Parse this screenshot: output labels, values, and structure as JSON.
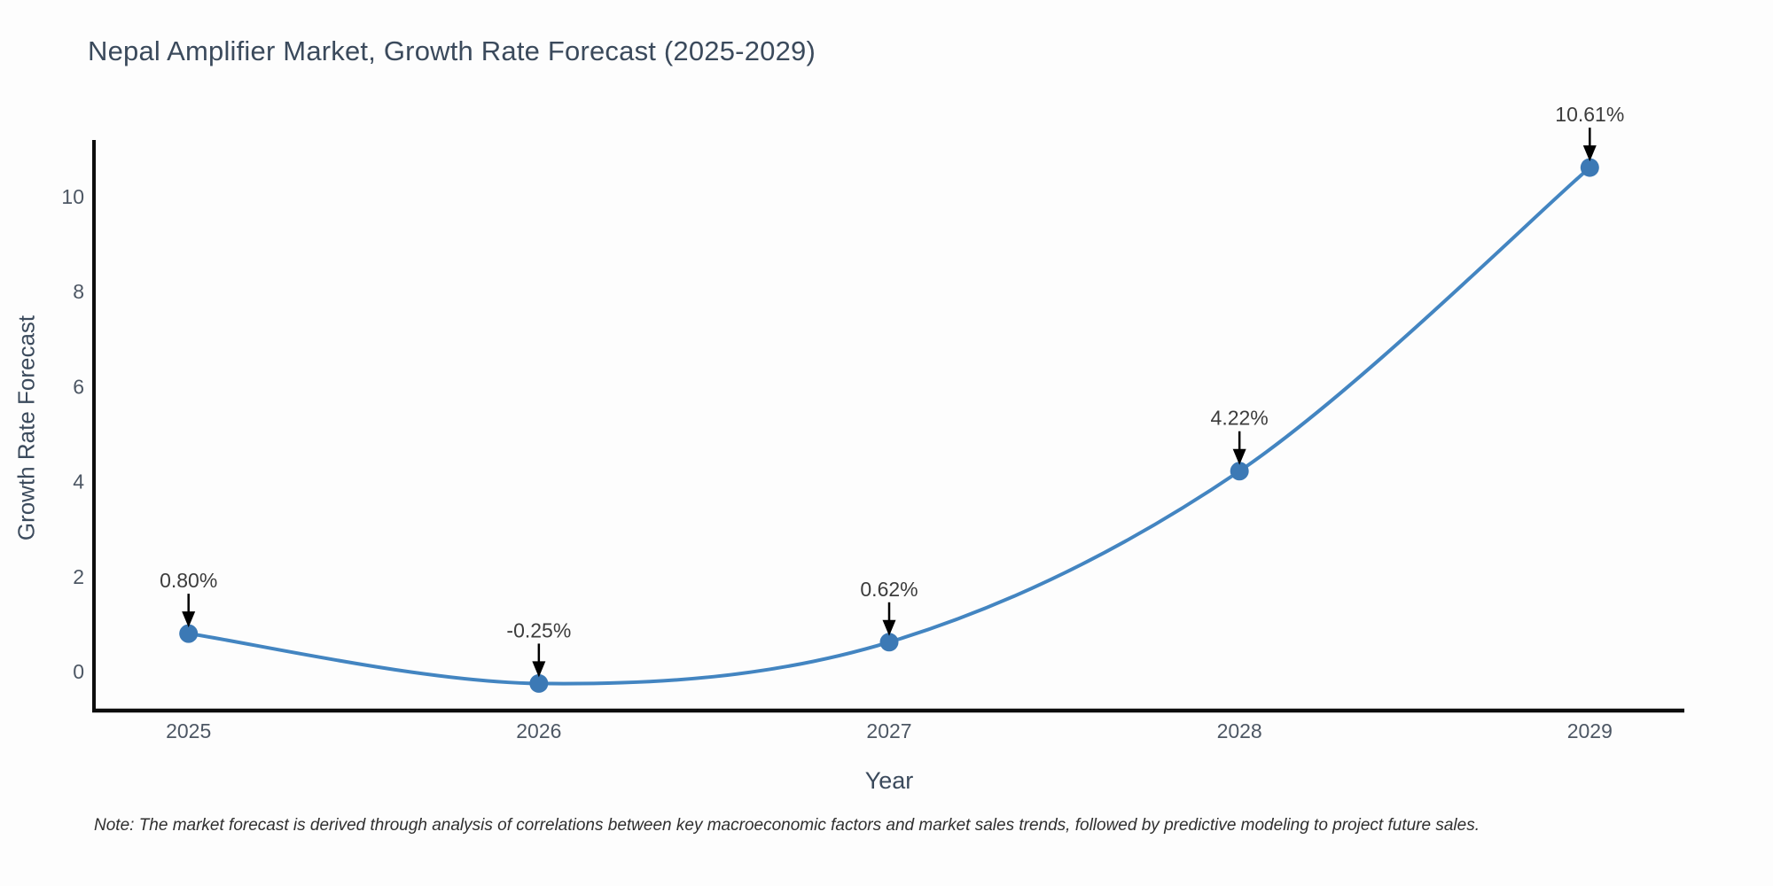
{
  "figure": {
    "title": "Nepal Amplifier Market, Growth Rate Forecast (2025-2029)",
    "note": "Note: The market forecast is derived through analysis of correlations between key macroeconomic factors and market sales trends, followed by predictive modeling to project future sales."
  },
  "chart_data": {
    "type": "line",
    "title": "Nepal Amplifier Market, Growth Rate Forecast (2025-2029)",
    "xlabel": "Year",
    "ylabel": "Growth Rate Forecast",
    "x": [
      2025,
      2026,
      2027,
      2028,
      2029
    ],
    "categories": [
      "2025",
      "2026",
      "2027",
      "2028",
      "2029"
    ],
    "values": [
      0.8,
      -0.25,
      0.62,
      4.22,
      10.61
    ],
    "point_labels": [
      "0.80%",
      "-0.25%",
      "0.62%",
      "4.22%",
      "10.61%"
    ],
    "yticks": [
      0,
      2,
      4,
      6,
      8,
      10
    ],
    "ytick_labels": [
      "0",
      "2",
      "4",
      "6",
      "8",
      "10"
    ],
    "xlim": [
      2024.73,
      2029.27
    ],
    "ylim": [
      -0.82,
      11.19
    ],
    "grid": false,
    "legend_position": "none",
    "line_color": "#4385c1",
    "marker_color": "#3c79b5",
    "annotation_color": "#3c3c3c",
    "arrow_color": "#000000",
    "spine_color": "#0d0d0d",
    "tick_color": "#4d5764"
  }
}
